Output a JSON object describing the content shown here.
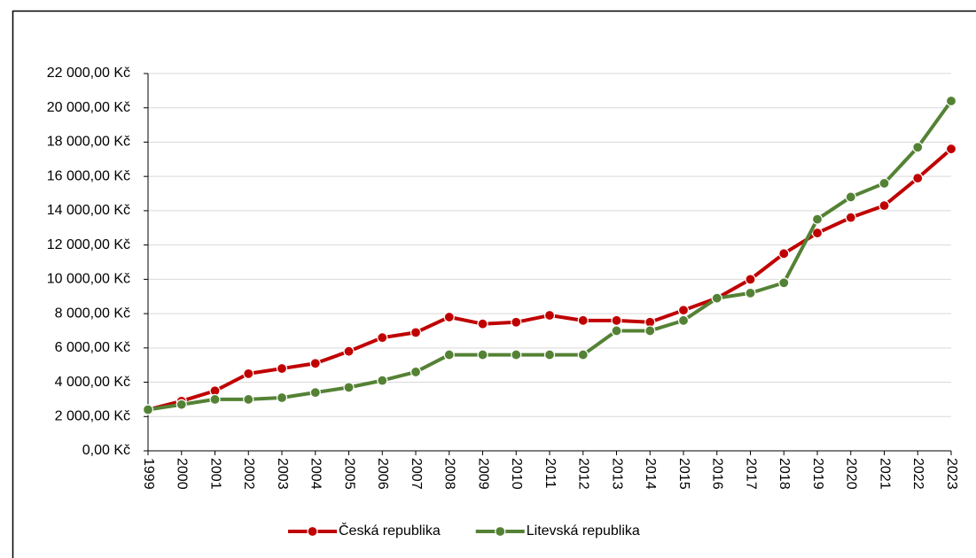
{
  "chart_data": {
    "type": "line",
    "categories": [
      "1999",
      "2000",
      "2001",
      "2002",
      "2003",
      "2004",
      "2005",
      "2006",
      "2007",
      "2008",
      "2009",
      "2010",
      "2011",
      "2012",
      "2013",
      "2014",
      "2015",
      "2016",
      "2017",
      "2018",
      "2019",
      "2020",
      "2021",
      "2022",
      "2023"
    ],
    "series": [
      {
        "name": "Česká republika",
        "color": "#c00000",
        "values": [
          2400,
          2900,
          3500,
          4500,
          4800,
          5100,
          5800,
          6600,
          6900,
          7800,
          7400,
          7500,
          7900,
          7600,
          7600,
          7500,
          8200,
          8900,
          10000,
          11500,
          12700,
          13600,
          14300,
          15900,
          17600
        ]
      },
      {
        "name": "Litevská republika",
        "color": "#548235",
        "values": [
          2400,
          2700,
          3000,
          3000,
          3100,
          3400,
          3700,
          4100,
          4600,
          5600,
          5600,
          5600,
          5600,
          5600,
          7000,
          7000,
          7600,
          8900,
          9200,
          9800,
          13500,
          14800,
          15600,
          17700,
          20400
        ]
      }
    ],
    "ylim": [
      0,
      22000
    ],
    "yticks": [
      {
        "value": 0,
        "label": "0,00 Kč"
      },
      {
        "value": 2000,
        "label": "2 000,00 Kč"
      },
      {
        "value": 4000,
        "label": "4 000,00 Kč"
      },
      {
        "value": 6000,
        "label": "6 000,00 Kč"
      },
      {
        "value": 8000,
        "label": "8 000,00 Kč"
      },
      {
        "value": 10000,
        "label": "10 000,00 Kč"
      },
      {
        "value": 12000,
        "label": "12 000,00 Kč"
      },
      {
        "value": 14000,
        "label": "14 000,00 Kč"
      },
      {
        "value": 16000,
        "label": "16 000,00 Kč"
      },
      {
        "value": 18000,
        "label": "18 000,00 Kč"
      },
      {
        "value": 20000,
        "label": "20 000,00 Kč"
      },
      {
        "value": 22000,
        "label": "22 000,00 Kč"
      }
    ],
    "grid": true,
    "legend": "bottom"
  }
}
